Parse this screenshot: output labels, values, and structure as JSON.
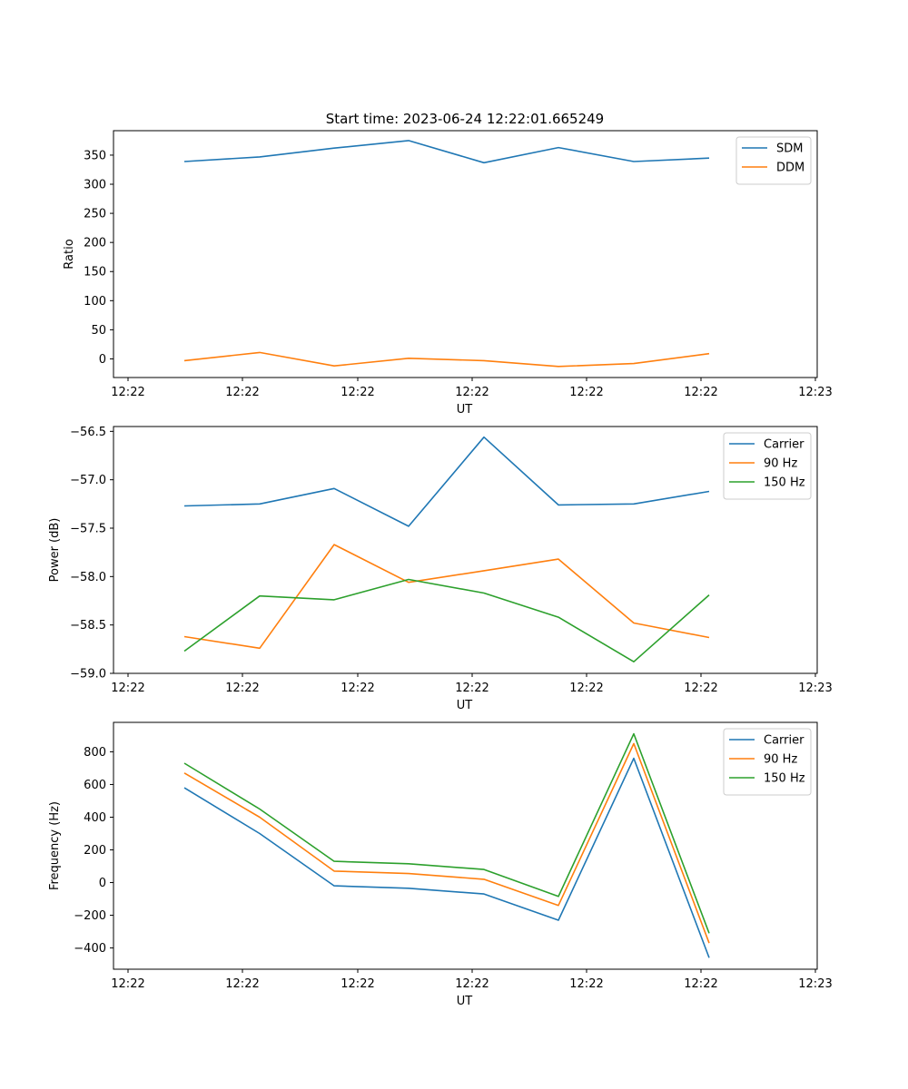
{
  "figure": {
    "title": "Start time: 2023-06-24 12:22:01.665249"
  },
  "chart_data": [
    {
      "type": "line",
      "title": "Start time: 2023-06-24 12:22:01.665249",
      "xlabel": "UT",
      "ylabel": "Ratio",
      "x_tick_labels": [
        "12:22",
        "12:22",
        "12:22",
        "12:22",
        "12:22",
        "12:22",
        "12:23"
      ],
      "x_point_count": 8,
      "ylim": [
        -32,
        392
      ],
      "yticks": [
        0,
        50,
        100,
        150,
        200,
        250,
        300,
        350
      ],
      "grid": false,
      "legend": "top-right",
      "series": [
        {
          "name": "SDM",
          "color": "#1f77b4",
          "values": [
            339,
            347,
            362,
            375,
            337,
            363,
            339,
            345
          ]
        },
        {
          "name": "DDM",
          "color": "#ff7f0e",
          "values": [
            -3,
            11,
            -12,
            1,
            -3,
            -13,
            -8,
            9
          ]
        }
      ]
    },
    {
      "type": "line",
      "title": "",
      "xlabel": "UT",
      "ylabel": "Power (dB)",
      "x_tick_labels": [
        "12:22",
        "12:22",
        "12:22",
        "12:22",
        "12:22",
        "12:22",
        "12:23"
      ],
      "x_point_count": 8,
      "ylim": [
        -59.0,
        -56.45
      ],
      "yticks": [
        -59.0,
        -58.5,
        -58.0,
        -57.5,
        -57.0,
        -56.5
      ],
      "ytick_labels": [
        "−59.0",
        "−58.5",
        "−58.0",
        "−57.5",
        "−57.0",
        "−56.5"
      ],
      "grid": false,
      "legend": "top-right",
      "series": [
        {
          "name": "Carrier",
          "color": "#1f77b4",
          "values": [
            -57.27,
            -57.25,
            -57.09,
            -57.48,
            -56.56,
            -57.26,
            -57.25,
            -57.12
          ]
        },
        {
          "name": "90 Hz",
          "color": "#ff7f0e",
          "values": [
            -58.62,
            -58.74,
            -57.67,
            -58.06,
            -57.94,
            -57.82,
            -58.48,
            -58.63
          ]
        },
        {
          "name": "150 Hz",
          "color": "#2ca02c",
          "values": [
            -58.77,
            -58.2,
            -58.24,
            -58.03,
            -58.17,
            -58.42,
            -58.88,
            -58.19
          ]
        }
      ]
    },
    {
      "type": "line",
      "title": "",
      "xlabel": "UT",
      "ylabel": "Frequency (Hz)",
      "x_tick_labels": [
        "12:22",
        "12:22",
        "12:22",
        "12:22",
        "12:22",
        "12:22",
        "12:23"
      ],
      "x_point_count": 8,
      "ylim": [
        -530,
        980
      ],
      "yticks": [
        -400,
        -200,
        0,
        200,
        400,
        600,
        800
      ],
      "ytick_labels": [
        "−400",
        "−200",
        "0",
        "200",
        "400",
        "600",
        "800"
      ],
      "grid": false,
      "legend": "top-right",
      "series": [
        {
          "name": "Carrier",
          "color": "#1f77b4",
          "values": [
            580,
            300,
            -20,
            -35,
            -70,
            -230,
            760,
            -460
          ]
        },
        {
          "name": "90 Hz",
          "color": "#ff7f0e",
          "values": [
            670,
            400,
            70,
            55,
            20,
            -140,
            850,
            -370
          ]
        },
        {
          "name": "150 Hz",
          "color": "#2ca02c",
          "values": [
            730,
            450,
            130,
            115,
            80,
            -85,
            910,
            -310
          ]
        }
      ]
    }
  ]
}
